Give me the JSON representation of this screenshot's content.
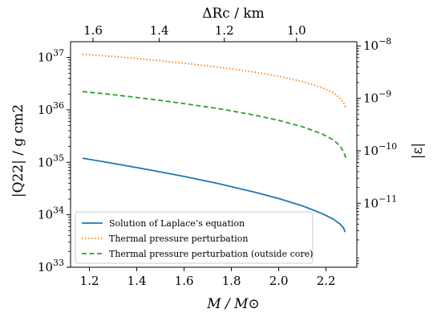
{
  "chart_data": {
    "type": "line",
    "xlabel": "M / M⊙",
    "x_top_label": "ΔRc / km",
    "ylabel_left": "|Q22| / g cm2",
    "ylabel_right": "|ε|",
    "xlim": [
      1.12,
      2.33
    ],
    "x_ticks": [
      1.2,
      1.4,
      1.6,
      1.8,
      2.0,
      2.2
    ],
    "x_tick_labels": [
      "1.2",
      "1.4",
      "1.6",
      "1.8",
      "2.0",
      "2.2"
    ],
    "top_ticks": [
      {
        "label": "1.6",
        "at_mass": 1.215
      },
      {
        "label": "1.4",
        "at_mass": 1.495
      },
      {
        "label": "1.2",
        "at_mass": 1.77
      },
      {
        "label": "1.0",
        "at_mass": 2.075
      }
    ],
    "ylim_left_log10": [
      33,
      37.3
    ],
    "y_left_ticks": [
      {
        "base": "10",
        "exp": "33",
        "log": 33
      },
      {
        "base": "10",
        "exp": "34",
        "log": 34
      },
      {
        "base": "10",
        "exp": "35",
        "log": 35
      },
      {
        "base": "10",
        "exp": "36",
        "log": 36
      },
      {
        "base": "10",
        "exp": "37",
        "log": 37
      }
    ],
    "y_right_ticks": [
      {
        "base": "10",
        "exp": "−11",
        "log_left": 34.22
      },
      {
        "base": "10",
        "exp": "−10",
        "log_left": 35.22
      },
      {
        "base": "10",
        "exp": "−9",
        "log_left": 36.22
      },
      {
        "base": "10",
        "exp": "−8",
        "log_left": 37.22
      }
    ],
    "log_scale": true,
    "grid": false,
    "legend_position": "lower-left",
    "series": [
      {
        "name": "Solution of Laplace’s equation",
        "style": "solid",
        "color": "#1f77b4",
        "x": [
          1.17,
          1.3,
          1.45,
          1.6,
          1.75,
          1.9,
          2.0,
          2.1,
          2.18,
          2.23,
          2.26,
          2.275,
          2.28
        ],
        "y_log10": [
          35.08,
          34.98,
          34.86,
          34.73,
          34.59,
          34.43,
          34.31,
          34.17,
          34.03,
          33.92,
          33.82,
          33.74,
          33.67
        ]
      },
      {
        "name": "Thermal pressure perturbation",
        "style": "dotted",
        "color": "#ff7f0e",
        "x": [
          1.17,
          1.3,
          1.45,
          1.6,
          1.75,
          1.9,
          2.0,
          2.1,
          2.18,
          2.23,
          2.26,
          2.275,
          2.285
        ],
        "y_log10": [
          37.06,
          37.02,
          36.96,
          36.89,
          36.81,
          36.72,
          36.64,
          36.54,
          36.43,
          36.33,
          36.22,
          36.12,
          36.02
        ]
      },
      {
        "name": "Thermal pressure perturbation (outside core)",
        "style": "dashed",
        "color": "#2ca02c",
        "x": [
          1.17,
          1.3,
          1.45,
          1.6,
          1.75,
          1.9,
          2.0,
          2.1,
          2.18,
          2.23,
          2.26,
          2.275,
          2.285
        ],
        "y_log10": [
          36.35,
          36.29,
          36.21,
          36.12,
          36.02,
          35.9,
          35.8,
          35.68,
          35.55,
          35.43,
          35.31,
          35.19,
          35.07
        ]
      }
    ]
  }
}
